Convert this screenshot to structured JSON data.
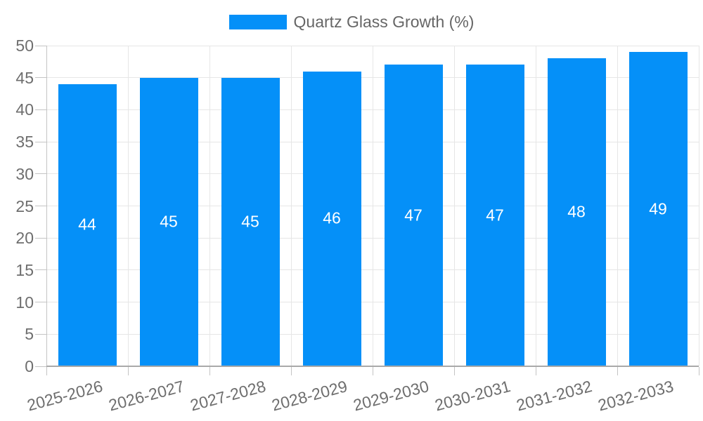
{
  "chart_data": {
    "type": "bar",
    "title": "",
    "legend": {
      "label": "Quartz Glass Growth (%)",
      "position": "top"
    },
    "categories": [
      "2025-2026",
      "2026-2027",
      "2027-2028",
      "2028-2029",
      "2029-2030",
      "2030-2031",
      "2031-2032",
      "2032-2033"
    ],
    "values": [
      44,
      45,
      45,
      46,
      47,
      47,
      48,
      49
    ],
    "value_labels": [
      "44",
      "45",
      "45",
      "46",
      "47",
      "47",
      "48",
      "49"
    ],
    "xlabel": "",
    "ylabel": "",
    "ylim": [
      0,
      50
    ],
    "yticks": [
      "0",
      "5",
      "10",
      "15",
      "20",
      "25",
      "30",
      "35",
      "40",
      "45",
      "50"
    ],
    "ytick_step": 5,
    "grid": "on",
    "legend_position": "top-center"
  },
  "colors": {
    "bar": "#0590f8",
    "value_label": "#ffffff",
    "grid": "#e6e6e6",
    "axis_line": "#c4c4c4",
    "axis_border": "#a9a9a9",
    "tick_mark": "#c4c4c4",
    "tick_text": "#6e6e6e",
    "legend_text": "#666666",
    "background": "#ffffff"
  }
}
